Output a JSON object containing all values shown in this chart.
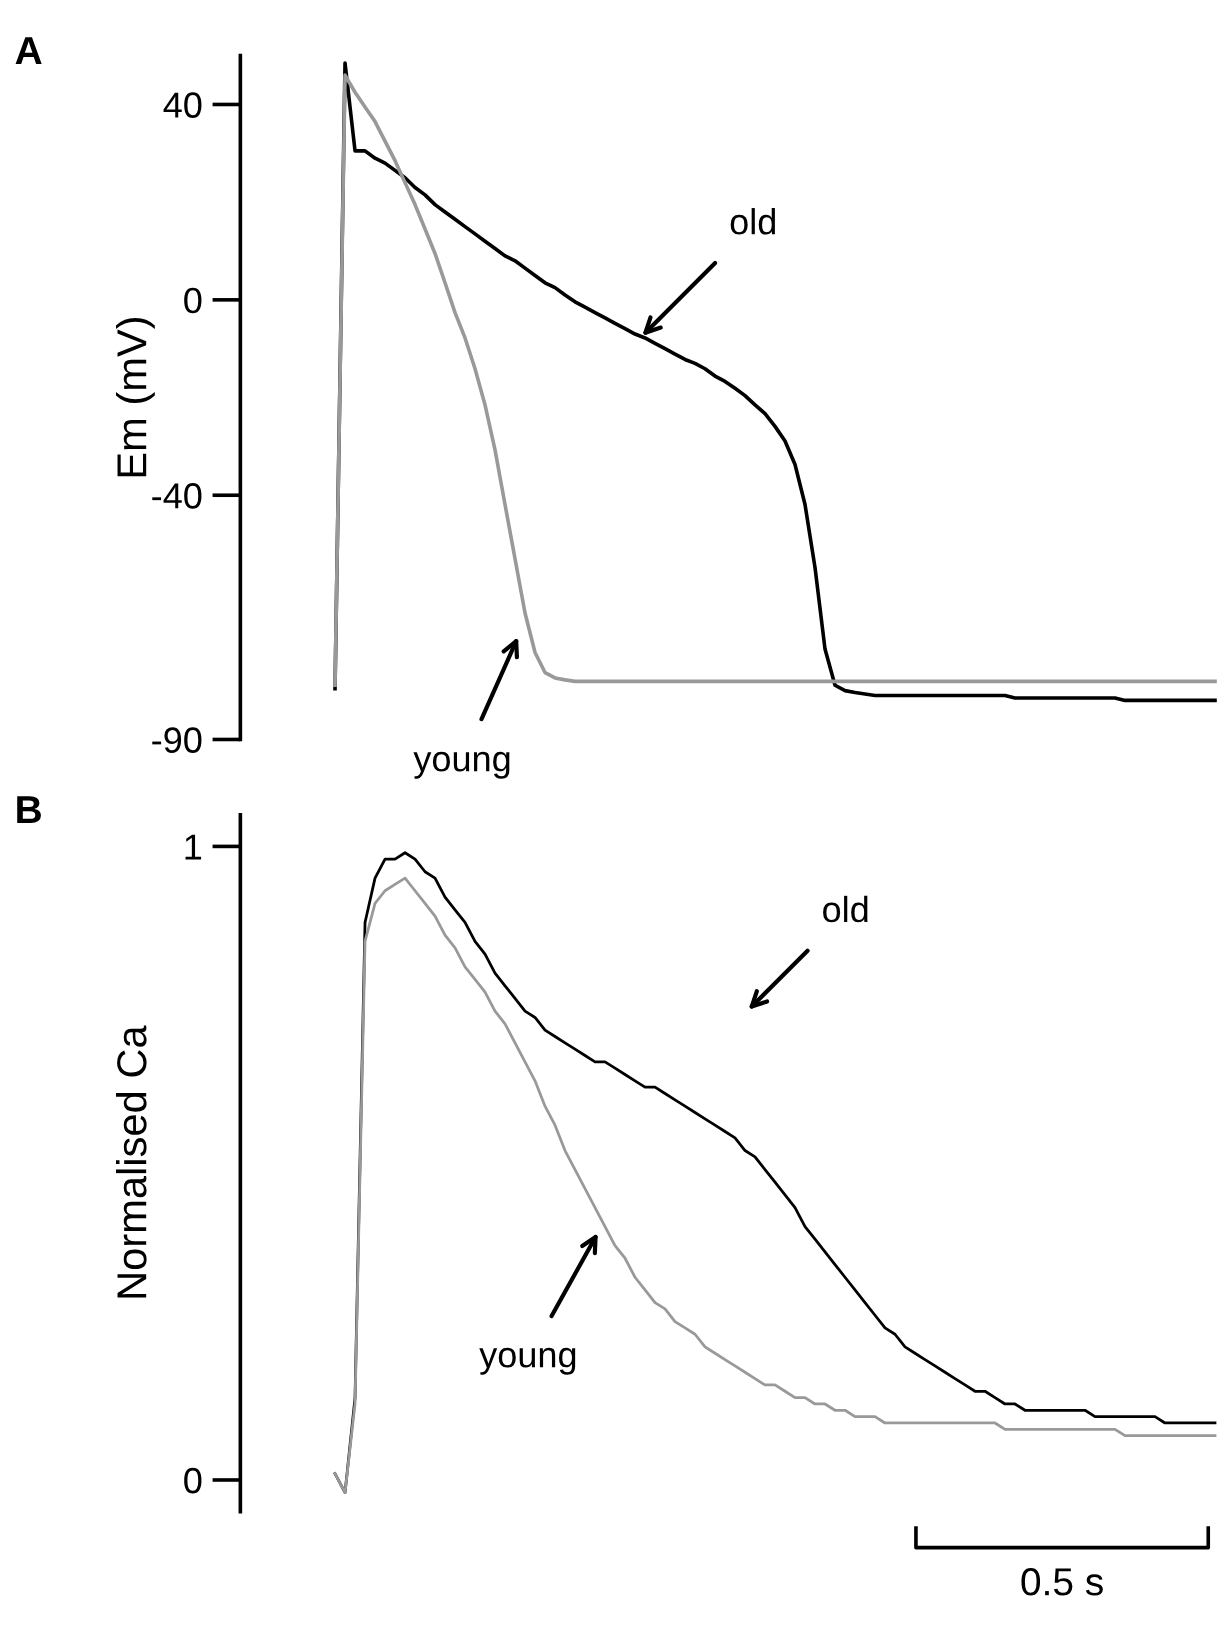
{
  "chart_data": [
    {
      "type": "line",
      "ylabel": "Em (mV)",
      "categories": [
        null,
        null,
        null,
        null,
        null,
        null,
        null,
        null,
        null,
        null,
        null,
        null,
        null,
        null,
        null,
        null,
        null,
        null,
        null,
        null,
        null,
        null,
        null,
        null,
        null,
        null,
        null,
        null,
        null,
        null,
        null,
        null,
        null,
        null,
        null,
        null,
        null,
        null,
        null,
        null,
        null,
        null,
        null,
        null,
        null,
        null,
        null,
        null,
        null,
        null,
        null,
        null,
        null,
        null,
        null,
        null,
        null,
        null,
        null,
        null,
        null,
        null,
        null,
        null,
        null,
        null,
        null,
        null,
        null,
        null,
        null,
        null,
        null,
        null,
        null,
        null,
        null,
        null,
        null,
        null,
        null,
        null,
        null,
        null,
        null,
        null,
        null,
        null,
        null
      ],
      "ylim": [
        -90,
        50
      ],
      "yticks": [
        40,
        0,
        -40,
        -90
      ],
      "tick_labels": "y",
      "grid": false,
      "legend": false,
      "marker": "none",
      "line_style": "solid",
      "series": [
        {
          "color": "#000000",
          "values": [
            -79.6,
            48.5,
            30.5,
            30.5,
            29,
            28,
            26.5,
            25,
            23,
            21.5,
            19.5,
            18,
            16.5,
            15,
            13.5,
            12,
            10.5,
            9,
            8,
            6.5,
            5,
            3.5,
            2.5,
            1,
            -0.4,
            -1.5,
            -2.6,
            -3.7,
            -4.8,
            -5.9,
            -7,
            -7.8,
            -8.9,
            -10,
            -11.1,
            -12.2,
            -13,
            -14.1,
            -15.6,
            -16.7,
            -18.1,
            -19.6,
            -21.5,
            -23.3,
            -25.9,
            -28.9,
            -33.7,
            -41.9,
            -54.8,
            -71.5,
            -78.9,
            -80,
            -80.4,
            -80.7,
            -81,
            -81,
            -81,
            -81,
            -81,
            -81,
            -81,
            -81,
            -81,
            -81,
            -81,
            -81,
            -81,
            -81,
            -81.5,
            -81.5,
            -81.5,
            -81.5,
            -81.5,
            -81.5,
            -81.5,
            -81.5,
            -81.5,
            -81.5,
            -81.5,
            -82,
            -82,
            -82,
            -82,
            -82,
            -82,
            -82,
            -82,
            -82,
            -82
          ]
        },
        {
          "color": "#999999",
          "values": [
            -78.9,
            46,
            42.5,
            39.5,
            36.5,
            32.5,
            28.5,
            24,
            19.5,
            14.5,
            9.5,
            3.5,
            -2.6,
            -7.8,
            -14.1,
            -21.5,
            -30.7,
            -41.9,
            -53,
            -64.1,
            -72.2,
            -76.3,
            -77.4,
            -77.8,
            -78.1,
            -78.1,
            -78.1,
            -78.1,
            -78.1,
            -78.1,
            -78.1,
            -78.1,
            -78.1,
            -78.1,
            -78.1,
            -78.1,
            -78.1,
            -78.1,
            -78.1,
            -78.1,
            -78.1,
            -78.1,
            -78.1,
            -78.1,
            -78.1,
            -78.1,
            -78.1,
            -78.1,
            -78.1,
            -78.1,
            -78.1,
            -78.1,
            -78.1,
            -78.1,
            -78.1,
            -78.1,
            -78.1,
            -78.1,
            -78.1,
            -78.1,
            -78.1,
            -78.1,
            -78.1,
            -78.1,
            -78.1,
            -78.1,
            -78.1,
            -78.1,
            -78.1,
            -78.1,
            -78.1,
            -78.1,
            -78.1,
            -78.1,
            -78.1,
            -78.1,
            -78.1,
            -78.1,
            -78.1,
            -78.1,
            -78.1,
            -78.1,
            -78.1,
            -78.1,
            -78.1,
            -78.1,
            -78.1,
            -78.1,
            -78.1
          ]
        }
      ],
      "annotations": [
        "A",
        "old",
        "young"
      ]
    },
    {
      "type": "line",
      "ylabel": "Normalised Ca",
      "categories": [
        null,
        null,
        null,
        null,
        null,
        null,
        null,
        null,
        null,
        null,
        null,
        null,
        null,
        null,
        null,
        null,
        null,
        null,
        null,
        null,
        null,
        null,
        null,
        null,
        null,
        null,
        null,
        null,
        null,
        null,
        null,
        null,
        null,
        null,
        null,
        null,
        null,
        null,
        null,
        null,
        null,
        null,
        null,
        null,
        null,
        null,
        null,
        null,
        null,
        null,
        null,
        null,
        null,
        null,
        null,
        null,
        null,
        null,
        null,
        null,
        null,
        null,
        null,
        null,
        null,
        null,
        null,
        null,
        null,
        null,
        null,
        null,
        null,
        null,
        null,
        null,
        null,
        null,
        null,
        null,
        null,
        null,
        null,
        null,
        null,
        null,
        null,
        null,
        null
      ],
      "ylim": [
        -0.05,
        1.05
      ],
      "yticks": [
        0,
        1
      ],
      "tick_labels": "y",
      "grid": false,
      "legend": false,
      "marker": "none",
      "line_style": "solid",
      "series": [
        {
          "color": "#000000",
          "values": [
            0.01,
            -0.02,
            0.13,
            0.88,
            0.95,
            0.98,
            0.98,
            0.99,
            0.98,
            0.96,
            0.95,
            0.92,
            0.9,
            0.88,
            0.85,
            0.83,
            0.8,
            0.78,
            0.76,
            0.74,
            0.73,
            0.71,
            0.7,
            0.69,
            0.68,
            0.67,
            0.66,
            0.66,
            0.65,
            0.64,
            0.63,
            0.62,
            0.62,
            0.61,
            0.6,
            0.59,
            0.58,
            0.57,
            0.56,
            0.55,
            0.54,
            0.52,
            0.51,
            0.49,
            0.47,
            0.45,
            0.43,
            0.4,
            0.38,
            0.36,
            0.34,
            0.32,
            0.3,
            0.28,
            0.26,
            0.24,
            0.23,
            0.21,
            0.2,
            0.19,
            0.18,
            0.17,
            0.16,
            0.15,
            0.14,
            0.14,
            0.13,
            0.12,
            0.12,
            0.11,
            0.11,
            0.11,
            0.11,
            0.11,
            0.11,
            0.11,
            0.1,
            0.1,
            0.1,
            0.1,
            0.1,
            0.1,
            0.1,
            0.09,
            0.09,
            0.09,
            0.09,
            0.09,
            0.09
          ]
        },
        {
          "color": "#999999",
          "values": [
            0.01,
            -0.02,
            0.12,
            0.85,
            0.91,
            0.93,
            0.94,
            0.95,
            0.93,
            0.91,
            0.89,
            0.86,
            0.84,
            0.81,
            0.79,
            0.77,
            0.74,
            0.72,
            0.69,
            0.66,
            0.63,
            0.59,
            0.56,
            0.52,
            0.49,
            0.46,
            0.43,
            0.4,
            0.37,
            0.35,
            0.32,
            0.3,
            0.28,
            0.27,
            0.25,
            0.24,
            0.23,
            0.21,
            0.2,
            0.19,
            0.18,
            0.17,
            0.16,
            0.15,
            0.15,
            0.14,
            0.13,
            0.13,
            0.12,
            0.12,
            0.11,
            0.11,
            0.1,
            0.1,
            0.1,
            0.09,
            0.09,
            0.09,
            0.09,
            0.09,
            0.09,
            0.09,
            0.09,
            0.09,
            0.09,
            0.09,
            0.09,
            0.08,
            0.08,
            0.08,
            0.08,
            0.08,
            0.08,
            0.08,
            0.08,
            0.08,
            0.08,
            0.08,
            0.08,
            0.07,
            0.07,
            0.07,
            0.07,
            0.07,
            0.07,
            0.07,
            0.07,
            0.07,
            0.07
          ]
        }
      ],
      "annotations": [
        "B",
        "old",
        "young",
        "0.5 s"
      ]
    }
  ]
}
